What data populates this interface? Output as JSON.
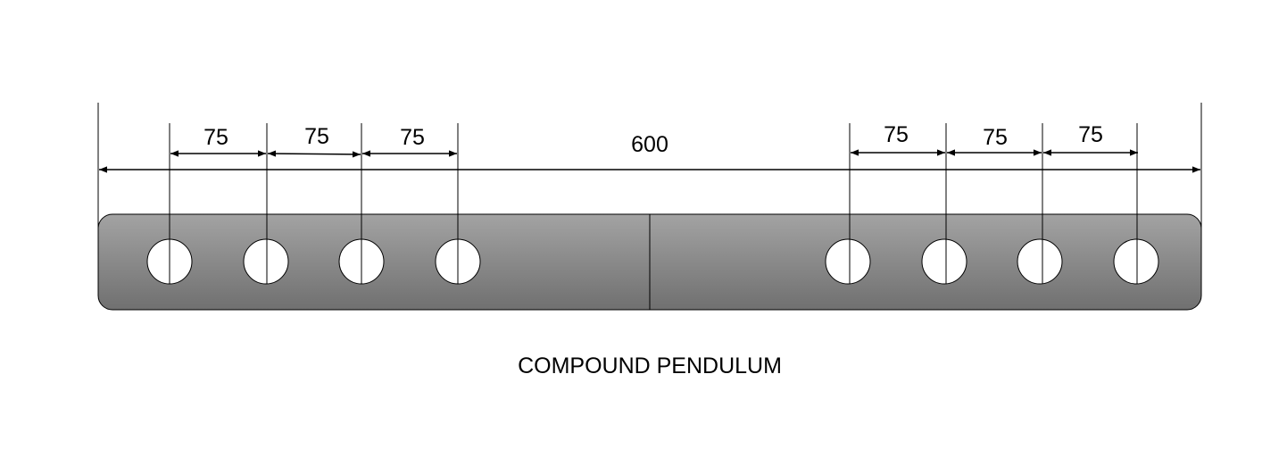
{
  "title": "COMPOUND PENDULUM",
  "overall_dimension": "600",
  "left_dimensions": [
    "75",
    "75",
    "75"
  ],
  "right_dimensions": [
    "75",
    "75",
    "75"
  ],
  "colors": {
    "bar_top": "#a3a3a3",
    "bar_bottom": "#707070",
    "hole_fill": "#ffffff",
    "line": "#000000"
  }
}
